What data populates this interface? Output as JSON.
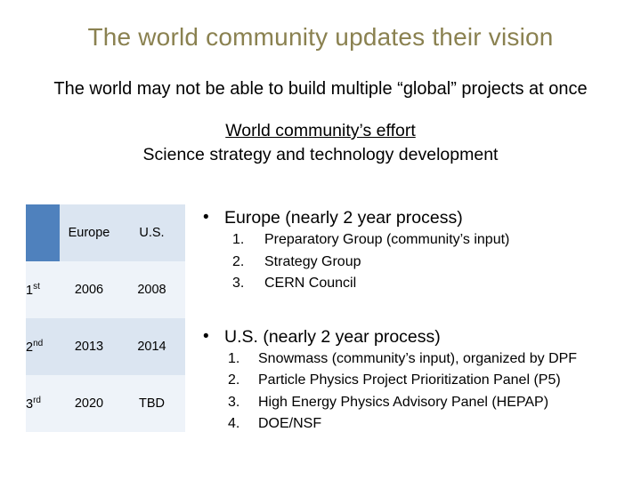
{
  "slide": {
    "title": "The world community updates their vision",
    "subtitle": "The world may not be able to build multiple “global” projects at once",
    "effort_line1": "World community’s effort",
    "effort_line2": "Science strategy and technology development"
  },
  "table": {
    "headers": [
      "",
      "Europe",
      "U.S."
    ],
    "rows": [
      {
        "ord": "1",
        "suffix": "st",
        "europe": "2006",
        "us": "2008"
      },
      {
        "ord": "2",
        "suffix": "nd",
        "europe": "2013",
        "us": "2014"
      },
      {
        "ord": "3",
        "suffix": "rd",
        "europe": "2020",
        "us": "TBD"
      }
    ]
  },
  "europe": {
    "heading": "Europe (nearly 2 year process)",
    "items": [
      {
        "num": "1.",
        "text": "Preparatory Group (community’s input)"
      },
      {
        "num": "2.",
        "text": "Strategy Group"
      },
      {
        "num": "3.",
        "text": "CERN Council"
      }
    ]
  },
  "us": {
    "heading": "U.S. (nearly 2 year process)",
    "items": [
      {
        "num": "1.",
        "text": "Snowmass (community’s input), organized by DPF"
      },
      {
        "num": "2.",
        "text": "Particle Physics Project Prioritization Panel (P5)"
      },
      {
        "num": "3.",
        "text": "High Energy Physics Advisory Panel (HEPAP)"
      },
      {
        "num": "4.",
        "text": "DOE/NSF"
      }
    ]
  },
  "bullet_glyph": "•",
  "colors": {
    "title": "#8a8150",
    "table_header_corner": "#4f81bd",
    "table_band": "#dbe5f1",
    "table_light": "#eef3f9"
  }
}
